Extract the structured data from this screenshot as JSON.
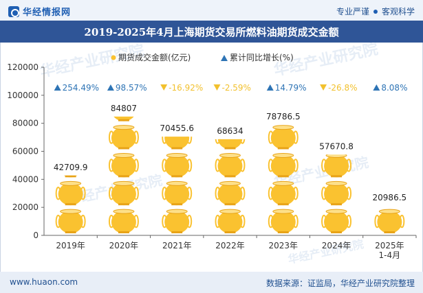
{
  "header": {
    "brand_name": "华经情报网",
    "slogan_left": "专业严谨",
    "slogan_right": "客观科学"
  },
  "title": "2019-2025年4月上海期货交易所燃料油期货成交金额",
  "footer": {
    "url": "www.huaon.com",
    "source": "数据来源：证监局，华经产业研究院整理"
  },
  "watermark": "华经产业研究院",
  "colors": {
    "bar": "#fac230",
    "up": "#2e74b5",
    "down": "#f2c12e",
    "title_bg": "#2f5597"
  },
  "chart_data": {
    "type": "bar",
    "categories": [
      "2019年",
      "2020年",
      "2021年",
      "2022年",
      "2023年",
      "2024年",
      "2025年 1-4月"
    ],
    "category_lines": [
      [
        "2019年"
      ],
      [
        "2020年"
      ],
      [
        "2021年"
      ],
      [
        "2022年"
      ],
      [
        "2023年"
      ],
      [
        "2024年"
      ],
      [
        "2025年",
        "1-4月"
      ]
    ],
    "series": [
      {
        "name": "期货成交金额(亿元)",
        "values": [
          42709.9,
          84807,
          70455.6,
          68634,
          78786.5,
          57670.8,
          20986.5
        ]
      },
      {
        "name": "累计同比增长(%)",
        "values": [
          254.49,
          98.57,
          -16.92,
          -2.59,
          14.79,
          -26.8,
          8.08
        ]
      }
    ],
    "value_labels": [
      "42709.9",
      "84807",
      "70455.6",
      "68634",
      "78786.5",
      "57670.8",
      "20986.5"
    ],
    "growth_labels": [
      "254.49%",
      "98.57%",
      "-16.92%",
      "-2.59%",
      "14.79%",
      "-26.8%",
      "8.08%"
    ],
    "ylim": [
      0,
      120000
    ],
    "yticks": [
      0,
      20000,
      40000,
      60000,
      80000,
      100000,
      120000
    ],
    "legend_position": "top",
    "grid": false
  }
}
